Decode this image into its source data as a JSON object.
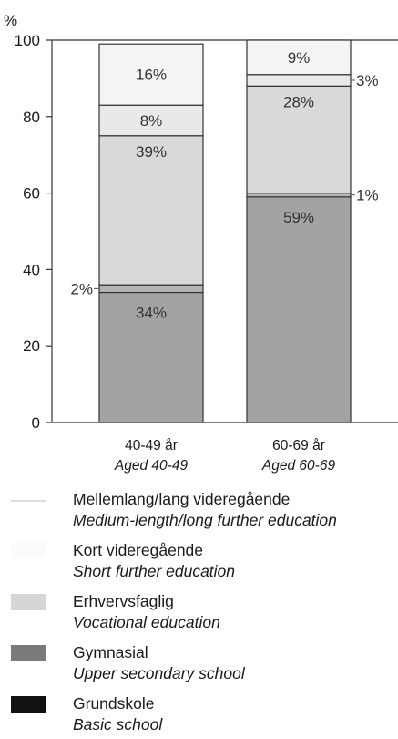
{
  "chart_data": {
    "type": "bar",
    "stacked": true,
    "ylabel": "%",
    "ylim": [
      0,
      100
    ],
    "yticks": [
      "0",
      "20",
      "40",
      "60",
      "80",
      "100"
    ],
    "categories": [
      {
        "da": "40-49 år",
        "en": "Aged 40-49"
      },
      {
        "da": "60-69 år",
        "en": "Aged 60-69"
      }
    ],
    "series": [
      {
        "name": "Grundskole",
        "values": [
          34,
          59
        ],
        "labels": [
          "34%",
          "59%"
        ],
        "color": "#a3a3a3"
      },
      {
        "name": "Gymnasial",
        "values": [
          2,
          1
        ],
        "labels": [
          "2%",
          "1%"
        ],
        "color": "#b5b5b5"
      },
      {
        "name": "Erhvervsfaglig",
        "values": [
          39,
          28
        ],
        "labels": [
          "39%",
          "28%"
        ],
        "color": "#d9d9d9"
      },
      {
        "name": "Kort videregående",
        "values": [
          8,
          3
        ],
        "labels": [
          "8%",
          "3%"
        ],
        "color": "#e9e9e9"
      },
      {
        "name": "Mellemlang/lang videregående",
        "values": [
          16,
          9
        ],
        "labels": [
          "16%",
          "9%"
        ],
        "color": "#f4f4f4"
      }
    ],
    "grid": false
  },
  "legend": {
    "items": [
      {
        "da": "Mellemlang/lang videregående",
        "en": "Medium-length/long further education",
        "color": "#efefef"
      },
      {
        "da": "Kort videregående",
        "en": "Short further education",
        "color": "#f8f8f8"
      },
      {
        "da": "Erhvervsfaglig",
        "en": "Vocational education",
        "color": "#d4d4d4"
      },
      {
        "da": "Gymnasial",
        "en": "Upper secondary school",
        "color": "#7d7d7d"
      },
      {
        "da": "Grundskole",
        "en": "Basic school",
        "color": "#111111"
      }
    ]
  }
}
